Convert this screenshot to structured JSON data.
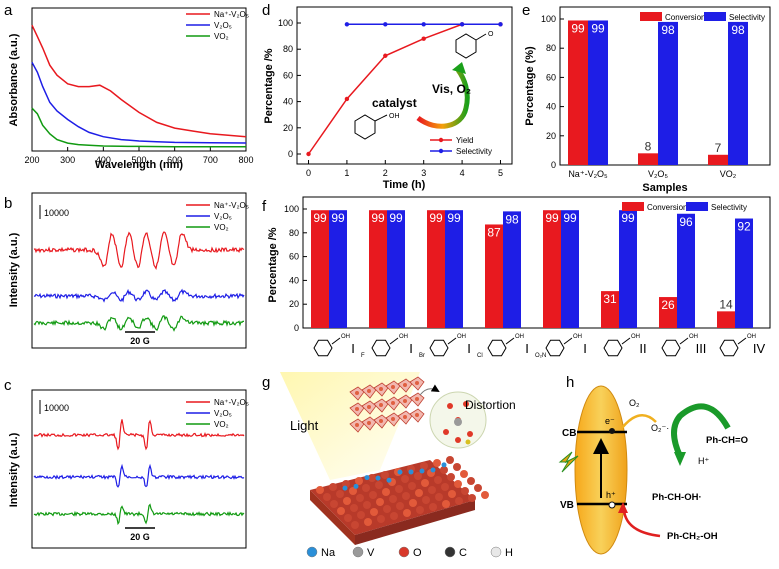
{
  "panels": {
    "a": "a",
    "b": "b",
    "c": "c",
    "d": "d",
    "e": "e",
    "f": "f",
    "g": "g",
    "h": "h"
  },
  "colors": {
    "red": "#e8191f",
    "blue": "#1e1ee6",
    "green": "#119a11",
    "axis": "#000000"
  },
  "chart_data": [
    {
      "id": "a",
      "type": "line",
      "xlabel": "Wavelength (nm)",
      "ylabel": "Absorbance (a.u.)",
      "xlim": [
        200,
        800
      ],
      "xticks": [
        "200",
        "300",
        "400",
        "500",
        "600",
        "700",
        "800"
      ],
      "legend": [
        "Na⁺-V₂O₅",
        "V₂O₅",
        "VO₂"
      ],
      "series": [
        {
          "name": "Na⁺-V₂O₅",
          "x": [
            200,
            215,
            230,
            250,
            270,
            300,
            330,
            360,
            390,
            420,
            450,
            500,
            550,
            600,
            650,
            700,
            750,
            800
          ],
          "y": [
            0.88,
            0.8,
            0.72,
            0.6,
            0.53,
            0.47,
            0.45,
            0.45,
            0.46,
            0.42,
            0.36,
            0.27,
            0.2,
            0.16,
            0.14,
            0.12,
            0.11,
            0.1
          ]
        },
        {
          "name": "V₂O₅",
          "x": [
            200,
            215,
            230,
            250,
            270,
            300,
            330,
            360,
            400,
            450,
            500,
            550,
            600,
            700,
            800
          ],
          "y": [
            0.62,
            0.55,
            0.45,
            0.34,
            0.28,
            0.22,
            0.17,
            0.13,
            0.1,
            0.08,
            0.07,
            0.065,
            0.06,
            0.058,
            0.056
          ]
        },
        {
          "name": "VO₂",
          "x": [
            200,
            215,
            230,
            250,
            270,
            300,
            330,
            360,
            400,
            450,
            500,
            600,
            700,
            800
          ],
          "y": [
            0.3,
            0.26,
            0.18,
            0.12,
            0.08,
            0.055,
            0.045,
            0.04,
            0.035,
            0.033,
            0.032,
            0.03,
            0.03,
            0.03
          ]
        }
      ]
    },
    {
      "id": "b",
      "type": "line",
      "ylabel": "Intensity (a.u.)",
      "scalebar": "10000",
      "fieldbar": "20 G",
      "legend": [
        "Na⁺-V₂O₅",
        "V₂O₅",
        "VO₂"
      ]
    },
    {
      "id": "c",
      "type": "line",
      "ylabel": "Intensity (a.u.)",
      "scalebar": "10000",
      "fieldbar": "20 G",
      "legend": [
        "Na⁺-V₂O₅",
        "V₂O₅",
        "VO₂"
      ]
    },
    {
      "id": "d",
      "type": "line",
      "xlabel": "Time (h)",
      "ylabel": "Percentage /%",
      "xlim": [
        -0.3,
        5.3
      ],
      "ylim": [
        0,
        100
      ],
      "xticks": [
        "0",
        "1",
        "2",
        "3",
        "4",
        "5"
      ],
      "yticks": [
        "0",
        "20",
        "40",
        "60",
        "80",
        "100"
      ],
      "series": [
        {
          "name": "Yield",
          "x": [
            0,
            1,
            2,
            3,
            4,
            5
          ],
          "y": [
            0,
            42,
            75,
            88,
            99,
            99
          ]
        },
        {
          "name": "Selectivity",
          "x": [
            1,
            2,
            3,
            4,
            5
          ],
          "y": [
            99,
            99,
            99,
            99,
            99
          ]
        }
      ],
      "annotations": [
        "catalyst",
        "Vis, O₂"
      ]
    },
    {
      "id": "e",
      "type": "bar",
      "xlabel": "Samples",
      "ylabel": "Percentage (%)",
      "ylim": [
        0,
        100
      ],
      "yticks": [
        "0",
        "20",
        "40",
        "60",
        "80",
        "100"
      ],
      "categories": [
        "Na⁺-V₂O₅",
        "V₂O₅",
        "VO₂"
      ],
      "series": [
        {
          "name": "Conversion",
          "values": [
            99,
            8,
            7
          ],
          "labels": [
            "99",
            "8",
            "7"
          ]
        },
        {
          "name": "Selectivity",
          "values": [
            99,
            98,
            98
          ],
          "labels": [
            "99",
            "98",
            "98"
          ]
        }
      ]
    },
    {
      "id": "f",
      "type": "bar",
      "ylabel": "Percentage /%",
      "ylim": [
        0,
        100
      ],
      "yticks": [
        "0",
        "20",
        "40",
        "60",
        "80",
        "100"
      ],
      "categories": [
        "I",
        "I",
        "I",
        "I",
        "I",
        "II",
        "III",
        "IV"
      ],
      "substituents": [
        "",
        "F",
        "Br",
        "Cl",
        "O₂N",
        "",
        "",
        ""
      ],
      "series": [
        {
          "name": "Conversion",
          "values": [
            99,
            99,
            99,
            87,
            99,
            31,
            26,
            14
          ],
          "labels": [
            "99",
            "99",
            "99",
            "87",
            "99",
            "31",
            "26",
            "14"
          ]
        },
        {
          "name": "Selectivity",
          "values": [
            99,
            99,
            99,
            98,
            99,
            99,
            96,
            92
          ],
          "labels": [
            "99",
            "99",
            "99",
            "98",
            "99",
            "99",
            "96",
            "92"
          ]
        }
      ]
    }
  ],
  "scheme_g": {
    "light": "Light",
    "distortion": "Distortion",
    "legend": [
      {
        "label": "Na",
        "color": "#2a8fd8"
      },
      {
        "label": "V",
        "color": "#9a9a9a"
      },
      {
        "label": "O",
        "color": "#d8382a"
      },
      {
        "label": "C",
        "color": "#333333"
      },
      {
        "label": "H",
        "color": "#e8e8e8"
      }
    ]
  },
  "scheme_h": {
    "cb": "CB",
    "vb": "VB",
    "e": "e⁻",
    "h": "h⁺",
    "o2": "O₂",
    "o2m": "O₂⁻·",
    "hplus": "H⁺",
    "product": "Ph-CH=O",
    "radical": "Ph-CH-OH·",
    "reactant": "Ph-CH₂-OH"
  }
}
